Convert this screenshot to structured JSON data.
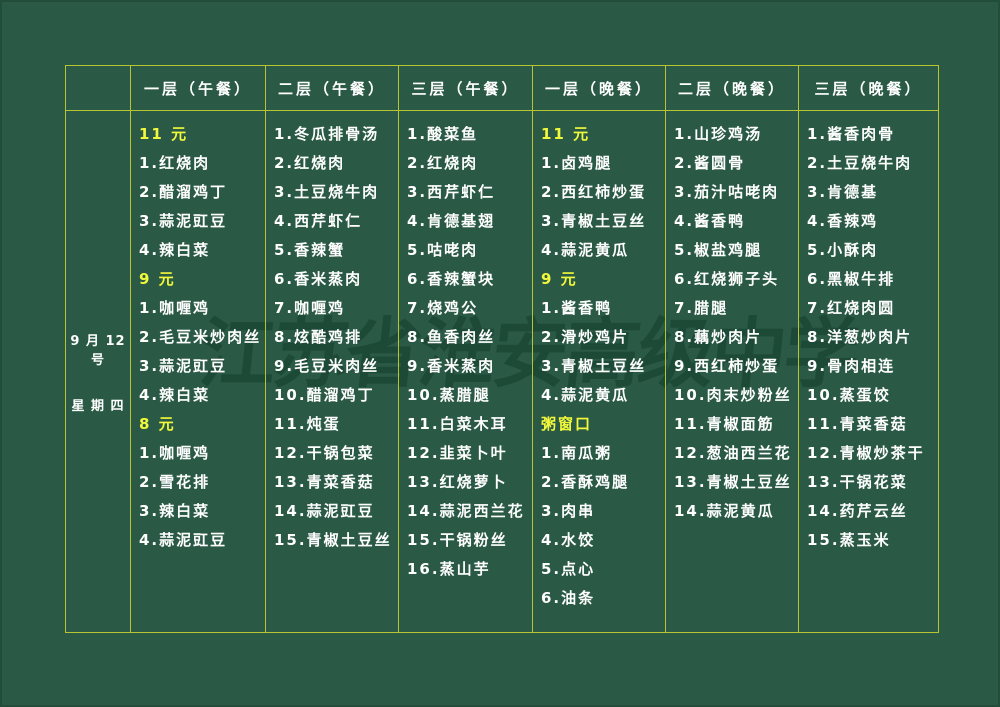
{
  "colors": {
    "background": "#2a5a45",
    "grid_line": "#b9c431",
    "text": "#ffffff",
    "highlight": "#f2f83c",
    "watermark": "#0c3424"
  },
  "watermark": "江苏省淮安高级中学",
  "date": {
    "line1": "9 月 12 号",
    "line2": "星 期 四"
  },
  "columns": [
    {
      "header": "一层（午餐）",
      "items": [
        {
          "text": "11 元",
          "highlight": true
        },
        {
          "text": "1.红烧肉"
        },
        {
          "text": "2.醋溜鸡丁"
        },
        {
          "text": "3.蒜泥豇豆"
        },
        {
          "text": "4.辣白菜"
        },
        {
          "text": "9 元",
          "highlight": true
        },
        {
          "text": "1.咖喱鸡"
        },
        {
          "text": "2.毛豆米炒肉丝"
        },
        {
          "text": "3.蒜泥豇豆"
        },
        {
          "text": "4.辣白菜"
        },
        {
          "text": "8 元",
          "highlight": true
        },
        {
          "text": "1.咖喱鸡"
        },
        {
          "text": "2.雪花排"
        },
        {
          "text": "3.辣白菜"
        },
        {
          "text": "4.蒜泥豇豆"
        }
      ]
    },
    {
      "header": "二层（午餐）",
      "items": [
        {
          "text": "1.冬瓜排骨汤"
        },
        {
          "text": "2.红烧肉"
        },
        {
          "text": "3.土豆烧牛肉"
        },
        {
          "text": "4.西芹虾仁"
        },
        {
          "text": "5.香辣蟹"
        },
        {
          "text": "6.香米蒸肉"
        },
        {
          "text": "7.咖喱鸡"
        },
        {
          "text": "8.炫酷鸡排"
        },
        {
          "text": "9.毛豆米肉丝"
        },
        {
          "text": "10.醋溜鸡丁"
        },
        {
          "text": "11.炖蛋"
        },
        {
          "text": "12.干锅包菜"
        },
        {
          "text": "13.青菜香菇"
        },
        {
          "text": "14.蒜泥豇豆"
        },
        {
          "text": "15.青椒土豆丝"
        }
      ]
    },
    {
      "header": "三层（午餐）",
      "items": [
        {
          "text": "1.酸菜鱼"
        },
        {
          "text": "2.红烧肉"
        },
        {
          "text": "3.西芹虾仁"
        },
        {
          "text": "4.肯德基翅"
        },
        {
          "text": "5.咕咾肉"
        },
        {
          "text": "6.香辣蟹块"
        },
        {
          "text": "7.烧鸡公"
        },
        {
          "text": "8.鱼香肉丝"
        },
        {
          "text": "9.香米蒸肉"
        },
        {
          "text": "10.蒸腊腿"
        },
        {
          "text": "11.白菜木耳"
        },
        {
          "text": "12.韭菜卜叶"
        },
        {
          "text": "13.红烧萝卜"
        },
        {
          "text": "14.蒜泥西兰花"
        },
        {
          "text": "15.干锅粉丝"
        },
        {
          "text": "16.蒸山芋"
        }
      ]
    },
    {
      "header": "一层（晚餐）",
      "items": [
        {
          "text": "11 元",
          "highlight": true
        },
        {
          "text": "1.卤鸡腿"
        },
        {
          "text": "2.西红柿炒蛋"
        },
        {
          "text": "3.青椒土豆丝"
        },
        {
          "text": "4.蒜泥黄瓜"
        },
        {
          "text": "9 元",
          "highlight": true
        },
        {
          "text": "1.酱香鸭"
        },
        {
          "text": "2.滑炒鸡片"
        },
        {
          "text": "3.青椒土豆丝"
        },
        {
          "text": "4.蒜泥黄瓜"
        },
        {
          "text": "粥窗口",
          "highlight": true
        },
        {
          "text": "1.南瓜粥"
        },
        {
          "text": "2.香酥鸡腿"
        },
        {
          "text": "3.肉串"
        },
        {
          "text": "4.水饺"
        },
        {
          "text": "5.点心"
        },
        {
          "text": "6.油条"
        }
      ]
    },
    {
      "header": "二层（晚餐）",
      "items": [
        {
          "text": "1.山珍鸡汤"
        },
        {
          "text": "2.酱圆骨"
        },
        {
          "text": "3.茄汁咕咾肉"
        },
        {
          "text": "4.酱香鸭"
        },
        {
          "text": "5.椒盐鸡腿"
        },
        {
          "text": "6.红烧狮子头"
        },
        {
          "text": "7.腊腿"
        },
        {
          "text": "8.藕炒肉片"
        },
        {
          "text": "9.西红柿炒蛋"
        },
        {
          "text": "10.肉末炒粉丝"
        },
        {
          "text": "11.青椒面筋"
        },
        {
          "text": "12.葱油西兰花"
        },
        {
          "text": "13.青椒土豆丝"
        },
        {
          "text": "14.蒜泥黄瓜"
        }
      ]
    },
    {
      "header": "三层（晚餐）",
      "items": [
        {
          "text": "1.酱香肉骨"
        },
        {
          "text": "2.土豆烧牛肉"
        },
        {
          "text": "3.肯德基"
        },
        {
          "text": "4.香辣鸡"
        },
        {
          "text": "5.小酥肉"
        },
        {
          "text": "6.黑椒牛排"
        },
        {
          "text": "7.红烧肉圆"
        },
        {
          "text": "8.洋葱炒肉片"
        },
        {
          "text": "9.骨肉相连"
        },
        {
          "text": "10.蒸蛋饺"
        },
        {
          "text": "11.青菜香菇"
        },
        {
          "text": "12.青椒炒茶干"
        },
        {
          "text": "13.干锅花菜"
        },
        {
          "text": "14.药芹云丝"
        },
        {
          "text": "15.蒸玉米"
        }
      ]
    }
  ]
}
